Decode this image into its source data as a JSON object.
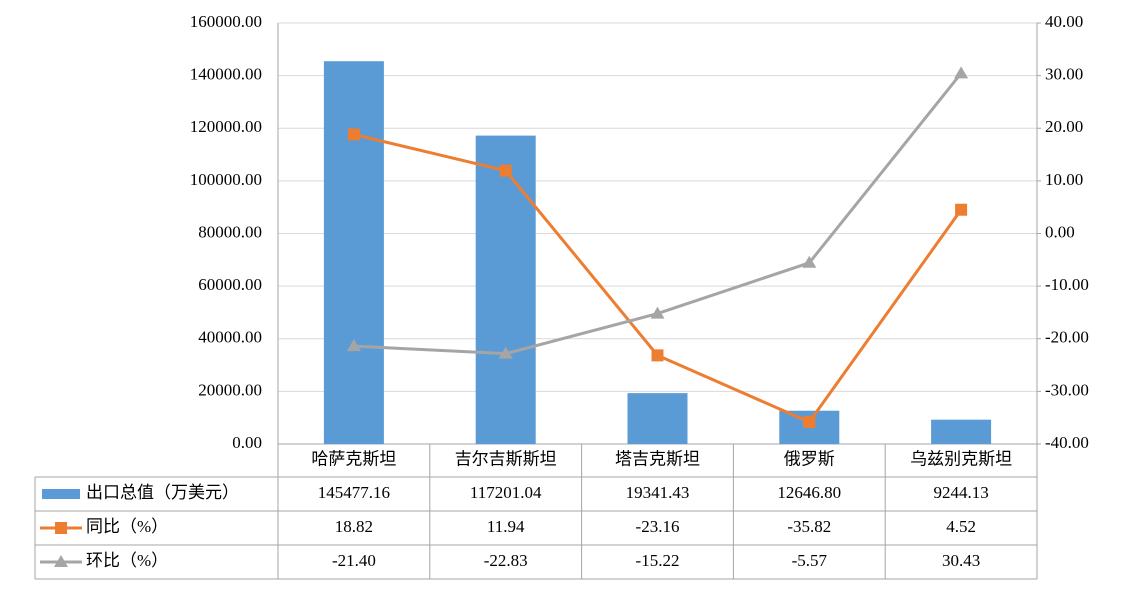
{
  "chart_data": {
    "type": "bar-line-table",
    "categories": [
      "哈萨克斯坦",
      "吉尔吉斯斯坦",
      "塔吉克斯坦",
      "俄罗斯",
      "乌兹别克斯坦"
    ],
    "series": [
      {
        "name": "出口总值（万美元）",
        "type": "bar",
        "color": "#5b9bd5",
        "values": [
          145477.16,
          117201.04,
          19341.43,
          12646.8,
          9244.13
        ],
        "value_labels": [
          "145477.16",
          "117201.04",
          "19341.43",
          "12646.80",
          "9244.13"
        ]
      },
      {
        "name": "同比（%）",
        "type": "line",
        "marker": "square",
        "axis": "y2",
        "color": "#ed7d31",
        "values": [
          18.82,
          11.94,
          -23.16,
          -35.82,
          4.52
        ],
        "value_labels": [
          "18.82",
          "11.94",
          "-23.16",
          "-35.82",
          "4.52"
        ]
      },
      {
        "name": "环比（%）",
        "type": "line",
        "marker": "triangle",
        "axis": "y2",
        "color": "#a5a5a5",
        "values": [
          -21.4,
          -22.83,
          -15.22,
          -5.57,
          30.43
        ],
        "value_labels": [
          "-21.40",
          "-22.83",
          "-15.22",
          "-5.57",
          "30.43"
        ]
      }
    ],
    "ylim": [
      0,
      160000
    ],
    "yticks": [
      {
        "value": 0,
        "label": "0.00"
      },
      {
        "value": 20000,
        "label": "20000.00"
      },
      {
        "value": 40000,
        "label": "40000.00"
      },
      {
        "value": 60000,
        "label": "60000.00"
      },
      {
        "value": 80000,
        "label": "80000.00"
      },
      {
        "value": 100000,
        "label": "100000.00"
      },
      {
        "value": 120000,
        "label": "120000.00"
      },
      {
        "value": 140000,
        "label": "140000.00"
      },
      {
        "value": 160000,
        "label": "160000.00"
      }
    ],
    "y2lim": [
      -40,
      40
    ],
    "y2ticks": [
      {
        "value": -40,
        "label": "-40.00"
      },
      {
        "value": -30,
        "label": "-30.00"
      },
      {
        "value": -20,
        "label": "-20.00"
      },
      {
        "value": -10,
        "label": "-10.00"
      },
      {
        "value": 0,
        "label": "0.00"
      },
      {
        "value": 10,
        "label": "10.00"
      },
      {
        "value": 20,
        "label": "20.00"
      },
      {
        "value": 30,
        "label": "30.00"
      },
      {
        "value": 40,
        "label": "40.00"
      }
    ],
    "grid": true
  }
}
